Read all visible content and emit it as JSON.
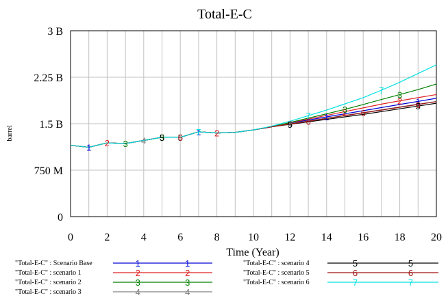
{
  "chart_data": {
    "type": "line",
    "title": "Total-E-C",
    "xlabel": "Time (Year)",
    "ylabel": "barrel",
    "xlim": [
      0,
      20
    ],
    "ylim": [
      0,
      3000000000
    ],
    "x_ticks": [
      0,
      2,
      4,
      6,
      8,
      10,
      12,
      14,
      16,
      18,
      20
    ],
    "y_ticks": [
      {
        "value": 0,
        "label": "0"
      },
      {
        "value": 750000000,
        "label": "750 M"
      },
      {
        "value": 1500000000,
        "label": "1.5 B"
      },
      {
        "value": 2250000000,
        "label": "2.25 B"
      },
      {
        "value": 3000000000,
        "label": "3 B"
      }
    ],
    "grid": true,
    "legend_position": "bottom",
    "x": [
      0,
      1,
      2,
      3,
      4,
      5,
      6,
      7,
      8,
      9,
      10,
      11,
      12,
      13,
      14,
      15,
      16,
      17,
      18,
      19,
      20
    ],
    "series": [
      {
        "name": "\"Total-E-C\" : Scenario Base",
        "marker": "1",
        "color": "#0000d8",
        "values": [
          1150000000,
          1120000000,
          1190000000,
          1180000000,
          1230000000,
          1280000000,
          1280000000,
          1370000000,
          1350000000,
          1360000000,
          1400000000,
          1450000000,
          1510000000,
          1560000000,
          1610000000,
          1660000000,
          1710000000,
          1760000000,
          1810000000,
          1860000000,
          1910000000
        ]
      },
      {
        "name": "\"Total-E-C\" : scenario 1",
        "marker": "2",
        "color": "#e02020",
        "values": [
          1150000000,
          1120000000,
          1190000000,
          1180000000,
          1230000000,
          1280000000,
          1280000000,
          1370000000,
          1350000000,
          1360000000,
          1400000000,
          1450000000,
          1515000000,
          1575000000,
          1635000000,
          1695000000,
          1755000000,
          1815000000,
          1870000000,
          1920000000,
          1970000000
        ]
      },
      {
        "name": "\"Total-E-C\" : scenario 2",
        "marker": "3",
        "color": "#008000",
        "values": [
          1150000000,
          1120000000,
          1190000000,
          1180000000,
          1230000000,
          1280000000,
          1280000000,
          1370000000,
          1350000000,
          1360000000,
          1400000000,
          1450000000,
          1520000000,
          1590000000,
          1660000000,
          1730000000,
          1810000000,
          1890000000,
          1970000000,
          2050000000,
          2140000000
        ]
      },
      {
        "name": "\"Total-E-C\" : scenario 3",
        "marker": "4",
        "color": "#808080",
        "values": [
          1150000000,
          1120000000,
          1190000000,
          1180000000,
          1230000000,
          1280000000,
          1280000000,
          1370000000,
          1350000000,
          1360000000,
          1400000000,
          1450000000,
          1500000000,
          1545000000,
          1590000000,
          1635000000,
          1680000000,
          1725000000,
          1770000000,
          1815000000,
          1860000000
        ]
      },
      {
        "name": "\"Total-E-C\" : scenario 4",
        "marker": "5",
        "color": "#000000",
        "values": [
          1150000000,
          1120000000,
          1190000000,
          1180000000,
          1230000000,
          1280000000,
          1280000000,
          1370000000,
          1350000000,
          1360000000,
          1400000000,
          1450000000,
          1490000000,
          1530000000,
          1570000000,
          1610000000,
          1650000000,
          1695000000,
          1740000000,
          1785000000,
          1830000000
        ]
      },
      {
        "name": "\"Total-E-C\" : scenario 5",
        "marker": "6",
        "color": "#a01010",
        "values": [
          1150000000,
          1120000000,
          1190000000,
          1180000000,
          1230000000,
          1280000000,
          1280000000,
          1370000000,
          1350000000,
          1360000000,
          1400000000,
          1450000000,
          1495000000,
          1540000000,
          1585000000,
          1630000000,
          1675000000,
          1720000000,
          1765000000,
          1810000000,
          1855000000
        ]
      },
      {
        "name": "\"Total-E-C\" : scenario 6",
        "marker": "7",
        "color": "#00e0e0",
        "values": [
          1150000000,
          1120000000,
          1190000000,
          1180000000,
          1230000000,
          1280000000,
          1280000000,
          1370000000,
          1350000000,
          1360000000,
          1400000000,
          1460000000,
          1540000000,
          1630000000,
          1720000000,
          1820000000,
          1920000000,
          2040000000,
          2170000000,
          2310000000,
          2450000000
        ]
      }
    ],
    "marker_points": [
      {
        "series": 0,
        "x": [
          1,
          7,
          14,
          19
        ]
      },
      {
        "series": 1,
        "x": [
          2,
          8,
          15,
          18
        ]
      },
      {
        "series": 2,
        "x": [
          3,
          5,
          15,
          18
        ]
      },
      {
        "series": 3,
        "x": [
          4,
          12
        ]
      },
      {
        "series": 4,
        "x": [
          5,
          6,
          12,
          19
        ]
      },
      {
        "series": 5,
        "x": [
          6,
          13,
          16,
          19
        ]
      },
      {
        "series": 6,
        "x": [
          7,
          13,
          17
        ]
      }
    ]
  }
}
